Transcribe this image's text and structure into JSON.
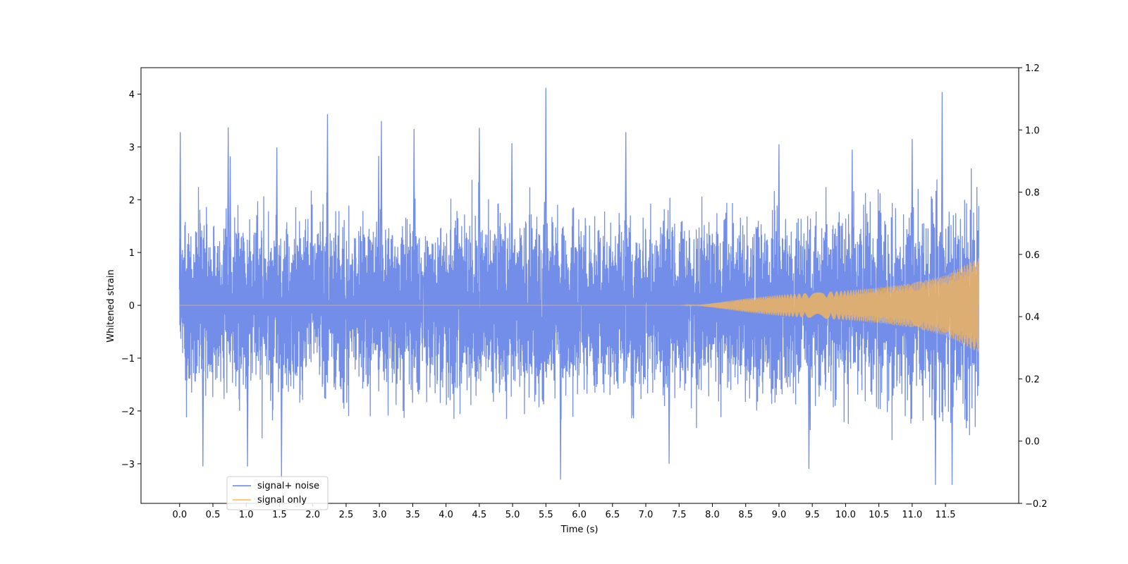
{
  "chart_data": {
    "type": "line",
    "title": "",
    "xlabel": "Time (s)",
    "ylabel": "Whitened strain",
    "y2label": "",
    "xlim": [
      -0.58,
      12.6
    ],
    "ylim": [
      -3.75,
      4.5
    ],
    "y2lim": [
      -0.2,
      1.2
    ],
    "x_ticks": [
      0.0,
      0.5,
      1.0,
      1.5,
      2.0,
      2.5,
      3.0,
      3.5,
      4.0,
      4.5,
      5.0,
      5.5,
      6.0,
      6.5,
      7.0,
      7.5,
      8.0,
      8.5,
      9.0,
      9.5,
      10.0,
      10.5,
      11.0,
      11.5
    ],
    "x_tick_labels": [
      "0.0",
      "0.5",
      "1.0",
      "1.5",
      "2.0",
      "2.5",
      "3.0",
      "3.5",
      "4.0",
      "4.5",
      "5.0",
      "5.5",
      "6.0",
      "6.5",
      "7.0",
      "7.5",
      "8.0",
      "8.5",
      "9.0",
      "9.5",
      "10.0",
      "10.5",
      "11.0",
      "11.5"
    ],
    "y_ticks": [
      -3,
      -2,
      -1,
      0,
      1,
      2,
      3,
      4
    ],
    "y_tick_labels": [
      "−3",
      "−2",
      "−1",
      "0",
      "1",
      "2",
      "3",
      "4"
    ],
    "y2_ticks": [
      -0.2,
      0.0,
      0.2,
      0.4,
      0.6,
      0.8,
      1.0,
      1.2
    ],
    "y2_tick_labels": [
      "−0.2",
      "0.0",
      "0.2",
      "0.4",
      "0.6",
      "0.8",
      "1.0",
      "1.2"
    ],
    "grid": false,
    "legend_position": "lower-left",
    "x_range": [
      0.0,
      12.0
    ],
    "series": [
      {
        "name": "signal+ noise",
        "color": "#6482e6",
        "description_values": {
          "typical_envelope": [
            -1.7,
            1.7
          ],
          "peaks": [
            {
              "x": 0.01,
              "y": 3.28
            },
            {
              "x": 0.73,
              "y": 3.37
            },
            {
              "x": 0.76,
              "y": 2.82
            },
            {
              "x": 1.46,
              "y": 2.99
            },
            {
              "x": 2.22,
              "y": 3.62
            },
            {
              "x": 2.99,
              "y": 2.83
            },
            {
              "x": 3.03,
              "y": 3.49
            },
            {
              "x": 3.52,
              "y": 3.34
            },
            {
              "x": 4.5,
              "y": 3.36
            },
            {
              "x": 4.99,
              "y": 3.07
            },
            {
              "x": 5.5,
              "y": 4.12
            },
            {
              "x": 6.7,
              "y": 3.28
            },
            {
              "x": 9.0,
              "y": 3.05
            },
            {
              "x": 10.1,
              "y": 2.95
            },
            {
              "x": 11.0,
              "y": 3.15
            },
            {
              "x": 11.45,
              "y": 4.04
            }
          ],
          "troughs": [
            {
              "x": 0.35,
              "y": -3.05
            },
            {
              "x": 1.02,
              "y": -3.05
            },
            {
              "x": 1.53,
              "y": -3.3
            },
            {
              "x": 5.72,
              "y": -3.3
            },
            {
              "x": 7.35,
              "y": -3.0
            },
            {
              "x": 9.45,
              "y": -3.1
            },
            {
              "x": 11.35,
              "y": -3.4
            },
            {
              "x": 11.6,
              "y": -3.4
            }
          ]
        }
      },
      {
        "name": "signal only",
        "color": "#ffb84d",
        "envelope": {
          "t": [
            0.0,
            7.5,
            7.8,
            8.0,
            8.5,
            9.0,
            9.5,
            10.0,
            10.5,
            11.0,
            11.5,
            12.0
          ],
          "amp": [
            0.0,
            0.0,
            0.01,
            0.04,
            0.13,
            0.2,
            0.24,
            0.28,
            0.34,
            0.42,
            0.57,
            0.9
          ]
        }
      }
    ]
  }
}
